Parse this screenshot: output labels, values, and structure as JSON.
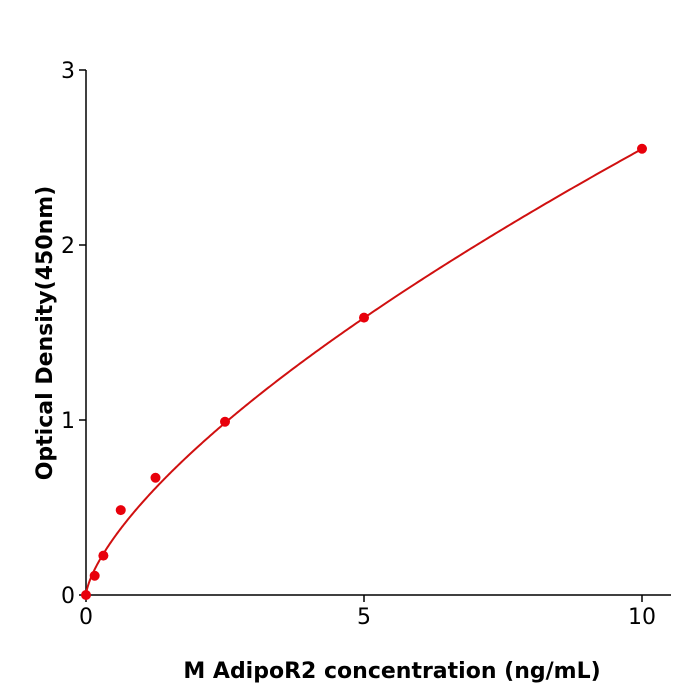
{
  "chart_data": {
    "type": "scatter",
    "title": "",
    "xlabel": "M  AdipoR2 concentration (ng/mL)",
    "ylabel": "Optical Density(450nm)",
    "xlim": [
      0,
      10.5
    ],
    "ylim": [
      0,
      3
    ],
    "xticks": [
      "0",
      "5",
      "10"
    ],
    "yticks": [
      "0",
      "1",
      "2",
      "3"
    ],
    "grid": false,
    "legend": "none",
    "x": [
      0,
      0.156,
      0.3125,
      0.625,
      1.25,
      2.5,
      5,
      10
    ],
    "y": [
      0.0,
      0.11,
      0.225,
      0.485,
      0.67,
      0.99,
      1.585,
      2.55
    ],
    "fit": {
      "type": "power",
      "a": 0.524,
      "b": 0.687
    },
    "colors": {
      "points": "#e8000b",
      "curve": "#d01010",
      "axis": "#000000"
    }
  }
}
